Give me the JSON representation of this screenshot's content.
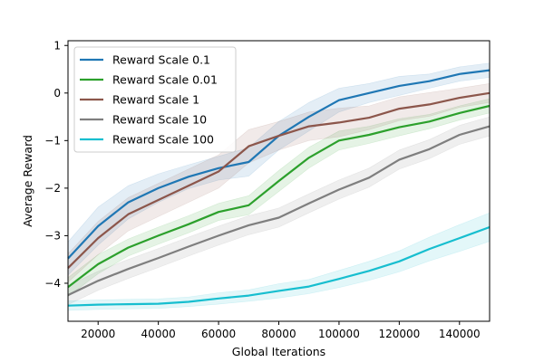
{
  "chart_data": {
    "type": "line",
    "xlabel": "Global Iterations",
    "ylabel": "Average Reward",
    "xlim": [
      10000,
      150000
    ],
    "ylim": [
      -4.8,
      1.1
    ],
    "xticks": [
      20000,
      40000,
      60000,
      80000,
      100000,
      120000,
      140000
    ],
    "yticks": [
      -4,
      -3,
      -2,
      -1,
      0,
      1
    ],
    "grid": false,
    "legend_position": "upper-left",
    "x": [
      10000,
      20000,
      30000,
      40000,
      50000,
      60000,
      70000,
      80000,
      90000,
      100000,
      110000,
      120000,
      130000,
      140000,
      150000
    ],
    "series": [
      {
        "name": "Reward Scale 0.1",
        "color": "#1f77b4",
        "values": [
          -3.48,
          -2.8,
          -2.3,
          -2.0,
          -1.76,
          -1.58,
          -1.45,
          -0.9,
          -0.5,
          -0.15,
          0.0,
          0.15,
          0.25,
          0.4,
          0.48
        ],
        "band": [
          0.35,
          0.4,
          0.35,
          0.3,
          0.25,
          0.25,
          0.3,
          0.3,
          0.3,
          0.25,
          0.2,
          0.2,
          0.15,
          0.15,
          0.15
        ]
      },
      {
        "name": "Reward Scale 0.01",
        "color": "#2ca02c",
        "values": [
          -4.08,
          -3.6,
          -3.25,
          -3.0,
          -2.76,
          -2.5,
          -2.36,
          -1.85,
          -1.36,
          -1.0,
          -0.88,
          -0.72,
          -0.6,
          -0.42,
          -0.27
        ],
        "band": [
          0.2,
          0.2,
          0.18,
          0.18,
          0.18,
          0.18,
          0.2,
          0.22,
          0.22,
          0.2,
          0.18,
          0.18,
          0.15,
          0.15,
          0.15
        ]
      },
      {
        "name": "Reward Scale 1",
        "color": "#8c564b",
        "values": [
          -3.68,
          -3.05,
          -2.55,
          -2.25,
          -1.95,
          -1.65,
          -1.12,
          -0.9,
          -0.7,
          -0.62,
          -0.52,
          -0.33,
          -0.24,
          -0.1,
          0.0
        ],
        "band": [
          0.3,
          0.35,
          0.35,
          0.35,
          0.35,
          0.35,
          0.35,
          0.3,
          0.3,
          0.3,
          0.25,
          0.25,
          0.25,
          0.2,
          0.2
        ]
      },
      {
        "name": "Reward Scale 10",
        "color": "#7f7f7f",
        "values": [
          -4.25,
          -3.95,
          -3.7,
          -3.47,
          -3.23,
          -3.0,
          -2.78,
          -2.62,
          -2.32,
          -2.03,
          -1.78,
          -1.4,
          -1.18,
          -0.88,
          -0.7
        ],
        "band": [
          0.2,
          0.2,
          0.2,
          0.2,
          0.2,
          0.2,
          0.2,
          0.2,
          0.2,
          0.2,
          0.2,
          0.2,
          0.2,
          0.2,
          0.2
        ]
      },
      {
        "name": "Reward Scale 100",
        "color": "#17becf",
        "values": [
          -4.47,
          -4.45,
          -4.44,
          -4.43,
          -4.39,
          -4.32,
          -4.26,
          -4.16,
          -4.07,
          -3.91,
          -3.74,
          -3.54,
          -3.28,
          -3.05,
          -2.82
        ],
        "band": [
          0.1,
          0.1,
          0.1,
          0.1,
          0.1,
          0.12,
          0.12,
          0.15,
          0.15,
          0.18,
          0.2,
          0.22,
          0.25,
          0.28,
          0.3
        ]
      }
    ]
  }
}
